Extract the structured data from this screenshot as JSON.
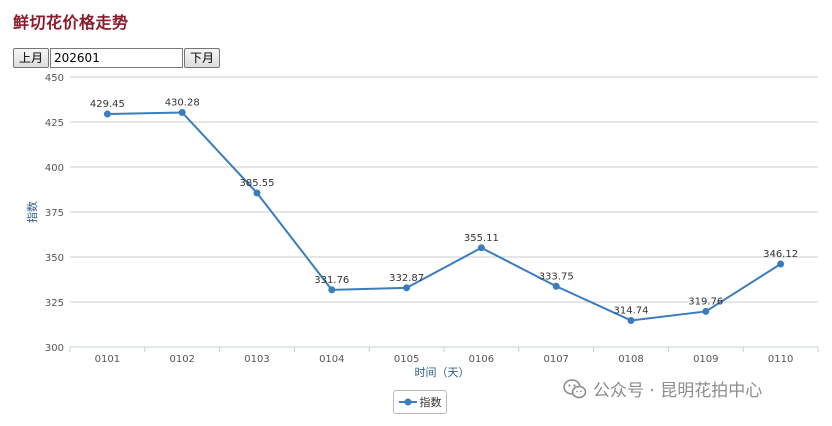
{
  "page": {
    "title": "鲜切花价格走势"
  },
  "nav": {
    "prev_label": "上月",
    "month_value": "202601",
    "next_label": "下月"
  },
  "watermark": {
    "text": "公众号 · 昆明花拍中心"
  },
  "legend": {
    "label": "指数"
  },
  "colors": {
    "title": "#8b1a2a",
    "series": "#3a7dbf",
    "grid": "#cccccc",
    "axis": "#c0d0e0"
  },
  "chart_data": {
    "type": "line",
    "title": "",
    "xlabel": "时间（天）",
    "ylabel": "指数",
    "ylim": [
      300,
      450
    ],
    "yticks": [
      300,
      325,
      350,
      375,
      400,
      425,
      450
    ],
    "grid": true,
    "legend_position": "bottom",
    "categories": [
      "0101",
      "0102",
      "0103",
      "0104",
      "0105",
      "0106",
      "0107",
      "0108",
      "0109",
      "0110"
    ],
    "series": [
      {
        "name": "指数",
        "values": [
          429.45,
          430.28,
          385.55,
          331.76,
          332.87,
          355.11,
          333.75,
          314.74,
          319.76,
          346.12
        ],
        "labels": [
          "429.45",
          "430.28",
          "385.55",
          "331.76",
          "332.87",
          "355.11",
          "333.75",
          "314.74",
          "319.76",
          "346.12"
        ]
      }
    ]
  }
}
